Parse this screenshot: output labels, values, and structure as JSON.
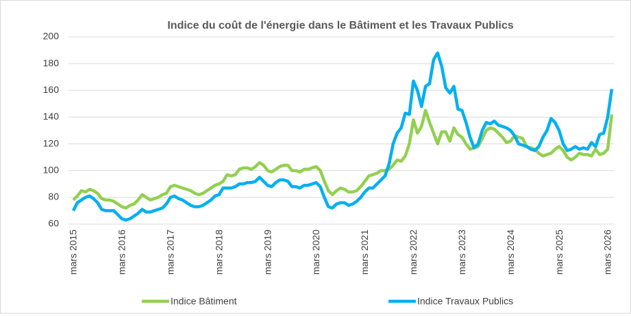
{
  "chart_data": {
    "type": "line",
    "title": "Indice du coût de l'énergie dans le Bâtiment et les Travaux Publics",
    "categories": [
      "mars 2015",
      null,
      null,
      null,
      null,
      null,
      null,
      null,
      null,
      null,
      null,
      null,
      "mars 2016",
      null,
      null,
      null,
      null,
      null,
      null,
      null,
      null,
      null,
      null,
      null,
      "mars 2017",
      null,
      null,
      null,
      null,
      null,
      null,
      null,
      null,
      null,
      null,
      null,
      "mars 2018",
      null,
      null,
      null,
      null,
      null,
      null,
      null,
      null,
      null,
      null,
      null,
      "mars 2019",
      null,
      null,
      null,
      null,
      null,
      null,
      null,
      null,
      null,
      null,
      null,
      "mars 2020",
      null,
      null,
      null,
      null,
      null,
      null,
      null,
      null,
      null,
      null,
      null,
      "mars 2021",
      null,
      null,
      null,
      null,
      null,
      null,
      null,
      null,
      null,
      null,
      null,
      "mars 2022",
      null,
      null,
      null,
      null,
      null,
      null,
      null,
      null,
      null,
      null,
      null,
      "mars 2023",
      null,
      null,
      null,
      null,
      null,
      null,
      null,
      null,
      null,
      null,
      null,
      "mars 2024",
      null,
      null,
      null,
      null,
      null,
      null,
      null,
      null,
      null,
      null,
      null,
      "mars 2025",
      null,
      null,
      null,
      null,
      null,
      null,
      null,
      null,
      null,
      null,
      null,
      "mars 2026",
      null
    ],
    "series": [
      {
        "name": "Indice Bâtiment",
        "color": "#92d050",
        "values": [
          78,
          81,
          85,
          84,
          86,
          85,
          83,
          79,
          78,
          78,
          77,
          75,
          73,
          72,
          74,
          75,
          78,
          82,
          80,
          78,
          79,
          80,
          82,
          83,
          88,
          89,
          88,
          87,
          86,
          85,
          83,
          82,
          83,
          85,
          87,
          89,
          90,
          92,
          97,
          96,
          97,
          101,
          102,
          102,
          101,
          103,
          106,
          104,
          100,
          99,
          101,
          103,
          104,
          104,
          100,
          100,
          99,
          101,
          101,
          102,
          103,
          100,
          92,
          85,
          82,
          85,
          87,
          86,
          84,
          84,
          85,
          88,
          92,
          96,
          97,
          98,
          100,
          100,
          101,
          104,
          108,
          107,
          111,
          120,
          138,
          128,
          133,
          145,
          136,
          128,
          120,
          129,
          129,
          122,
          132,
          127,
          125,
          120,
          116,
          117,
          118,
          124,
          130,
          132,
          131,
          128,
          125,
          121,
          122,
          126,
          125,
          124,
          118,
          117,
          116,
          113,
          111,
          112,
          113,
          116,
          118,
          115,
          110,
          108,
          110,
          113,
          112,
          112,
          111,
          116,
          112,
          113,
          116,
          142
        ]
      },
      {
        "name": "Indice Travaux Publics",
        "color": "#00b0f0",
        "values": [
          70,
          76,
          78,
          80,
          81,
          79,
          76,
          71,
          70,
          70,
          70,
          67,
          64,
          63,
          64,
          66,
          68,
          71,
          69,
          69,
          70,
          71,
          72,
          75,
          80,
          81,
          79,
          78,
          76,
          74,
          73,
          73,
          74,
          76,
          78,
          81,
          82,
          87,
          87,
          87,
          88,
          90,
          90,
          91,
          91,
          92,
          95,
          92,
          89,
          88,
          91,
          93,
          93,
          92,
          88,
          88,
          87,
          89,
          89,
          90,
          91,
          88,
          80,
          73,
          72,
          75,
          76,
          76,
          74,
          75,
          77,
          80,
          84,
          87,
          87,
          90,
          93,
          96,
          105,
          120,
          128,
          132,
          143,
          142,
          167,
          160,
          148,
          163,
          165,
          183,
          188,
          178,
          162,
          158,
          163,
          146,
          145,
          136,
          125,
          117,
          120,
          130,
          136,
          135,
          137,
          134,
          133,
          132,
          130,
          126,
          120,
          119,
          118,
          116,
          115,
          118,
          125,
          130,
          139,
          136,
          130,
          120,
          115,
          116,
          118,
          116,
          117,
          116,
          121,
          118,
          127,
          128,
          140,
          161
        ]
      }
    ],
    "ylim": [
      60,
      200
    ],
    "yticks": [
      60,
      80,
      100,
      120,
      140,
      160,
      180,
      200
    ],
    "grid": true,
    "legend": "bottom"
  }
}
